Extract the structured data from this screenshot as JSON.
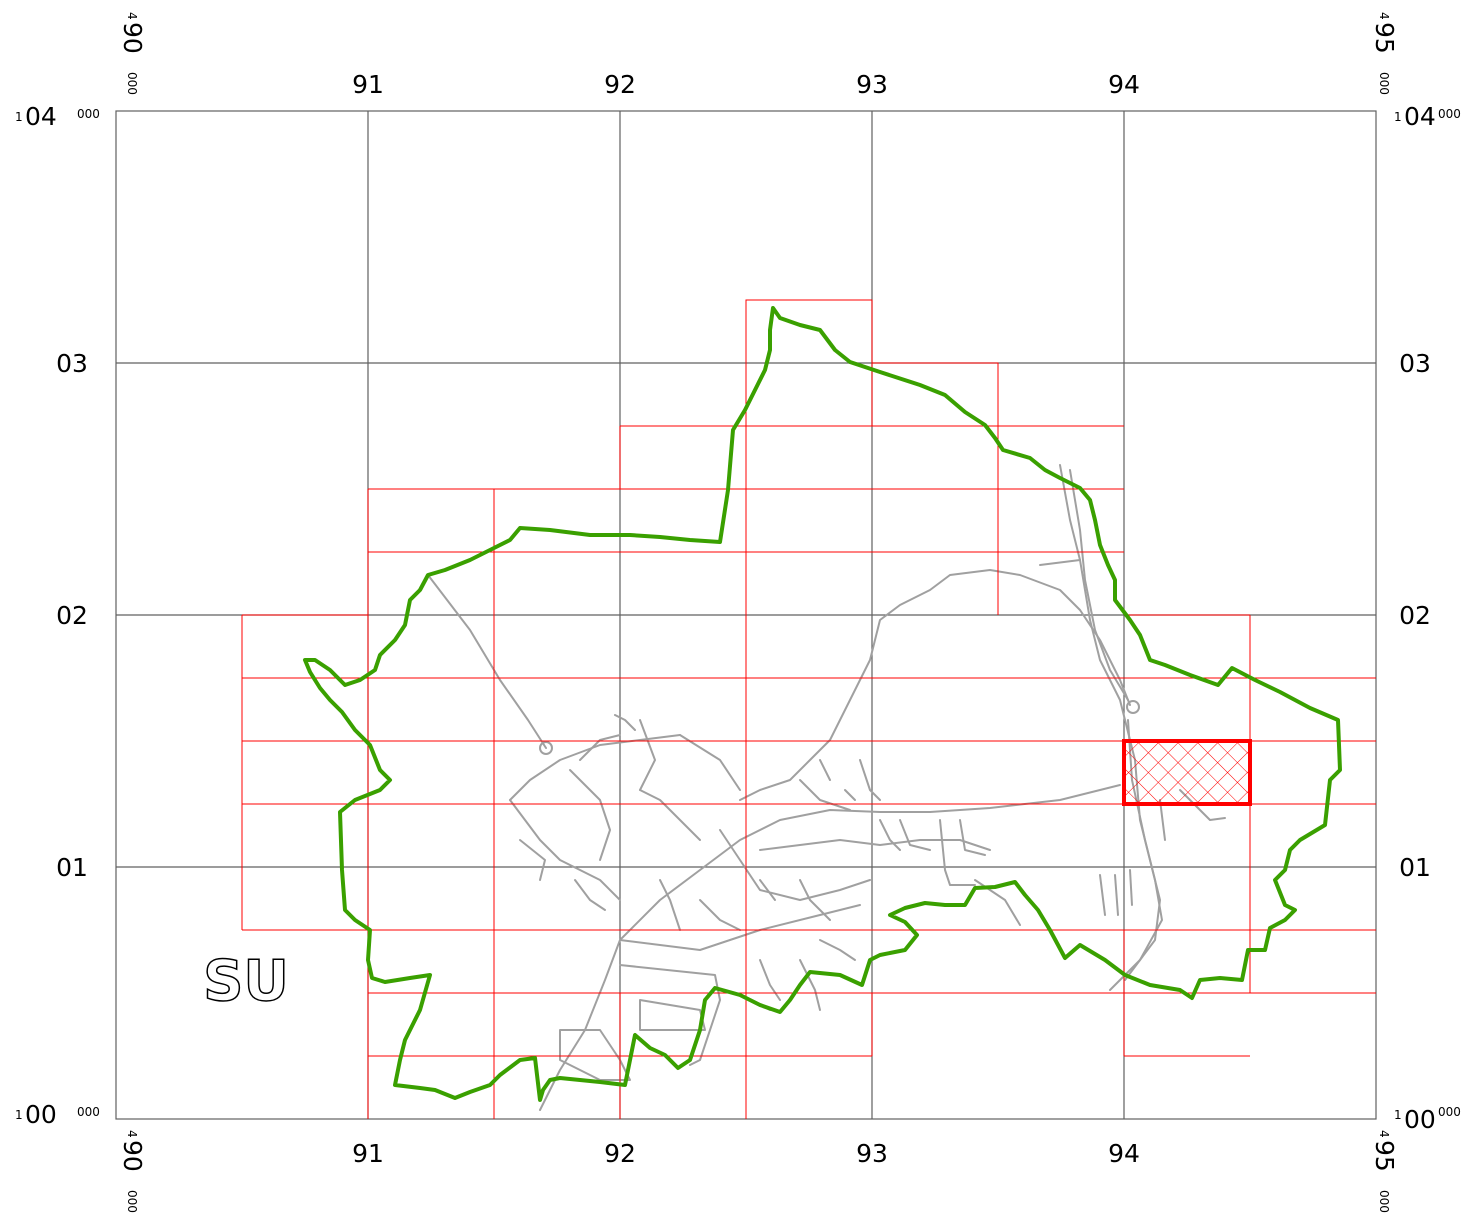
{
  "grid_letters": "SU",
  "colors": {
    "grid": "#606060",
    "sheets": "#ff0000",
    "boundary": "#3aa000",
    "roads": "#a0a0a0",
    "highlight": "#ff0000"
  },
  "eastings": {
    "sw_corner": {
      "prefix": "4",
      "main": "90",
      "suffix": "000"
    },
    "se_corner": {
      "prefix": "4",
      "main": "95",
      "suffix": "000"
    },
    "ticks": [
      "91",
      "92",
      "93",
      "94"
    ]
  },
  "northings": {
    "top_corner": {
      "prefix": "1",
      "main": "04",
      "suffix": "000"
    },
    "bottom_corner": {
      "prefix": "1",
      "main": "00",
      "suffix": "000"
    },
    "ticks": [
      "03",
      "02",
      "01"
    ]
  },
  "highlighted_sheet": {
    "e_from": 494000,
    "e_to": 494500,
    "n_from": 101250,
    "n_to": 101500
  }
}
